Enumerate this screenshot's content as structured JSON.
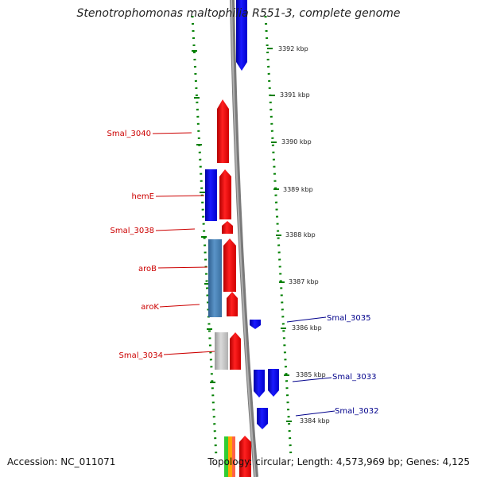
{
  "title": "Stenotrophomonas maltophilia R551-3, complete genome",
  "footer": {
    "accession_label": "Accession:",
    "accession": "NC_011071",
    "topology_label": "Topology:",
    "topology": "circular",
    "length_label": "Length:",
    "length": "4,573,969 bp",
    "genes_label": "Genes:",
    "genes": "4,125"
  },
  "colors": {
    "forward": "#ff0000",
    "reverse": "#0000ff",
    "reverse_alt": "#4682b4",
    "pseudo": "#c0c0c0",
    "ticks": "#007f00",
    "backbone": "#808080",
    "label_forward": "#cc0000",
    "label_reverse": "#00008b"
  },
  "kbp_ticks": [
    "3392 kbp",
    "3391 kbp",
    "3390 kbp",
    "3389 kbp",
    "3388 kbp",
    "3387 kbp",
    "3386 kbp",
    "3385 kbp",
    "3384 kbp"
  ],
  "gene_labels": {
    "smal_3040": "Smal_3040",
    "hemE": "hemE",
    "smal_3038": "Smal_3038",
    "aroB": "aroB",
    "aroK": "aroK",
    "smal_3034": "Smal_3034",
    "smal_3035": "Smal_3035",
    "smal_3033": "Smal_3033",
    "smal_3032": "Smal_3032"
  }
}
